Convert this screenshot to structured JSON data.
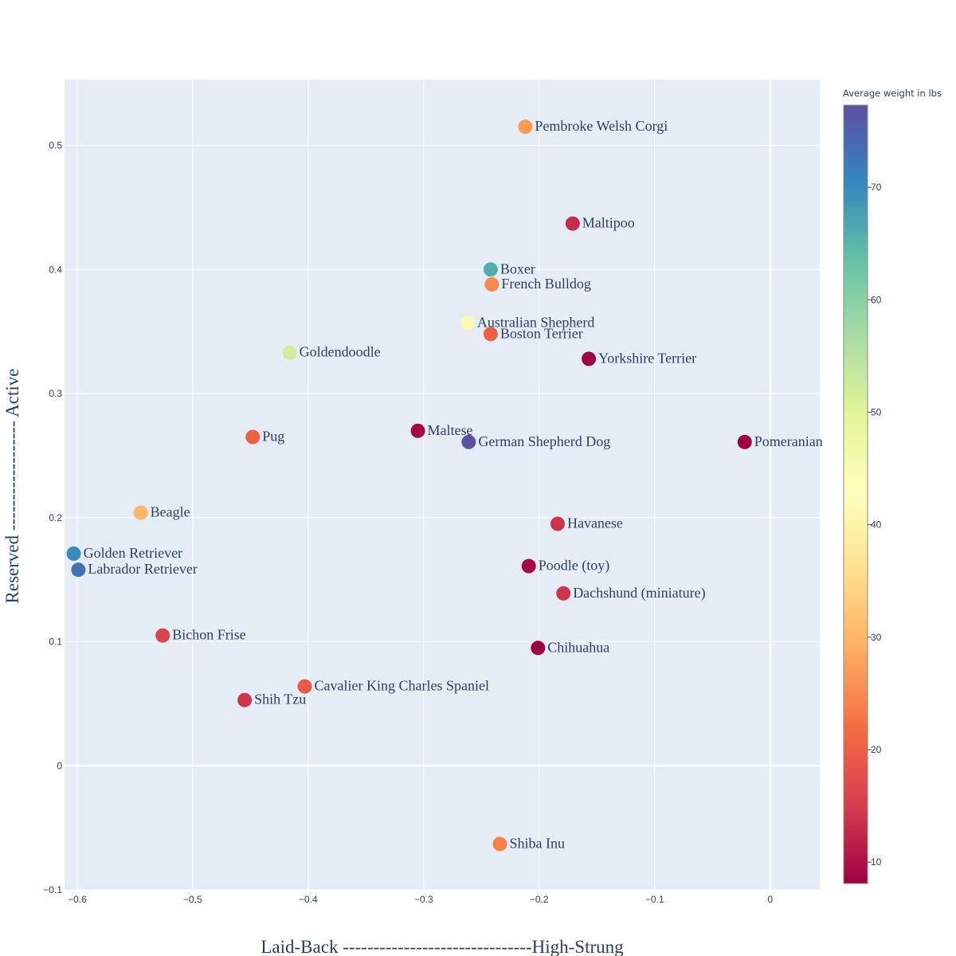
{
  "chart_data": {
    "type": "scatter",
    "title": "",
    "xlabel": "Laid-Back -------------------------------High-Strung",
    "ylabel": "Reserved ------------------ Active",
    "xlim": [
      -0.611,
      0.043
    ],
    "ylim": [
      -0.1,
      0.553
    ],
    "xticks": [
      -0.6,
      -0.5,
      -0.4,
      -0.3,
      -0.2,
      -0.1,
      0
    ],
    "xtick_labels": [
      "−0.6",
      "−0.5",
      "−0.4",
      "−0.3",
      "−0.2",
      "−0.1",
      "0"
    ],
    "yticks": [
      -0.1,
      0,
      0.1,
      0.2,
      0.3,
      0.4,
      0.5
    ],
    "ytick_labels": [
      "−0.1",
      "0",
      "0.1",
      "0.2",
      "0.3",
      "0.4",
      "0.5"
    ],
    "grid": true,
    "plot_background": "#e5ecf6",
    "colorbar": {
      "title": "Average weight in lbs",
      "range": [
        8.1,
        77.3
      ],
      "ticks": [
        10,
        20,
        30,
        40,
        50,
        60,
        70
      ],
      "tick_labels": [
        "10",
        "20",
        "30",
        "40",
        "50",
        "60",
        "70"
      ],
      "colorscale": [
        "#9e0142",
        "#d53e4f",
        "#f46d43",
        "#fdae61",
        "#fee08b",
        "#ffffbf",
        "#e6f598",
        "#abdda4",
        "#66c2a5",
        "#3288bd",
        "#5e4fa2"
      ]
    },
    "points": [
      {
        "label": "Pembroke Welsh Corgi",
        "x": -0.212,
        "y": 0.515,
        "weight": 27
      },
      {
        "label": "Maltipoo",
        "x": -0.171,
        "y": 0.437,
        "weight": 13
      },
      {
        "label": "Boxer",
        "x": -0.242,
        "y": 0.4,
        "weight": 66
      },
      {
        "label": "French Bulldog",
        "x": -0.241,
        "y": 0.388,
        "weight": 25
      },
      {
        "label": "Australian Shepherd",
        "x": -0.262,
        "y": 0.357,
        "weight": 45
      },
      {
        "label": "Boston Terrier",
        "x": -0.242,
        "y": 0.348,
        "weight": 20
      },
      {
        "label": "Yorkshire Terrier",
        "x": -0.157,
        "y": 0.328,
        "weight": 8
      },
      {
        "label": "Goldendoodle",
        "x": -0.416,
        "y": 0.333,
        "weight": 52
      },
      {
        "label": "Maltese",
        "x": -0.305,
        "y": 0.27,
        "weight": 9
      },
      {
        "label": "German Shepherd Dog",
        "x": -0.261,
        "y": 0.261,
        "weight": 77
      },
      {
        "label": "Pomeranian",
        "x": -0.022,
        "y": 0.261,
        "weight": 8
      },
      {
        "label": "Pug",
        "x": -0.448,
        "y": 0.265,
        "weight": 20
      },
      {
        "label": "Beagle",
        "x": -0.545,
        "y": 0.204,
        "weight": 30
      },
      {
        "label": "Havanese",
        "x": -0.184,
        "y": 0.195,
        "weight": 14
      },
      {
        "label": "Golden Retriever",
        "x": -0.603,
        "y": 0.171,
        "weight": 70
      },
      {
        "label": "Labrador Retriever",
        "x": -0.599,
        "y": 0.158,
        "weight": 73
      },
      {
        "label": "Poodle (toy)",
        "x": -0.209,
        "y": 0.161,
        "weight": 9
      },
      {
        "label": "Dachshund (miniature)",
        "x": -0.179,
        "y": 0.139,
        "weight": 14
      },
      {
        "label": "Bichon Frise",
        "x": -0.526,
        "y": 0.105,
        "weight": 16
      },
      {
        "label": "Chihuahua",
        "x": -0.201,
        "y": 0.095,
        "weight": 8
      },
      {
        "label": "Cavalier King Charles Spaniel",
        "x": -0.403,
        "y": 0.064,
        "weight": 19
      },
      {
        "label": "Shih Tzu",
        "x": -0.455,
        "y": 0.053,
        "weight": 14
      },
      {
        "label": "Shiba Inu",
        "x": -0.234,
        "y": -0.063,
        "weight": 24
      }
    ]
  }
}
